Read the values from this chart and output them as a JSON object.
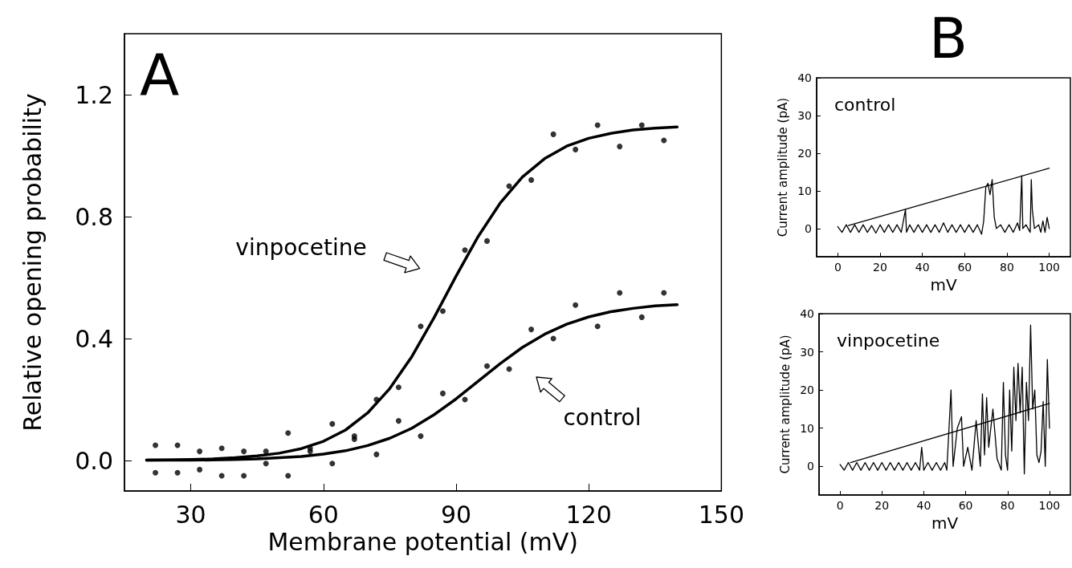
{
  "chart_data": [
    {
      "type": "scatter",
      "title": "A",
      "xlabel": "Membrane potential (mV)",
      "ylabel": "Relative opening probability",
      "xlim": [
        15,
        150
      ],
      "xticks": [
        30,
        60,
        90,
        120,
        150
      ],
      "ylim": [
        -0.1,
        1.4
      ],
      "yticks": [
        {
          "value": 0,
          "label": "0.0"
        },
        {
          "value": 0.4,
          "label": "0.4"
        },
        {
          "value": 0.8,
          "label": "0.8"
        },
        {
          "value": 1.2,
          "label": "1.2"
        }
      ],
      "marker": "circle",
      "annotations": [
        "vinpocetine",
        "control"
      ],
      "series": [
        {
          "color": "#000000",
          "x": [
            22,
            27,
            32,
            37,
            42,
            47,
            52,
            57,
            62,
            67,
            72,
            77,
            82,
            87,
            92,
            97,
            102,
            107,
            112,
            117,
            122,
            127,
            132,
            137
          ],
          "values": [
            0.05,
            -0.04,
            0.03,
            -0.05,
            0.03,
            -0.01,
            0.09,
            0.03,
            0.12,
            0.07,
            0.2,
            0.24,
            0.44,
            0.49,
            0.69,
            0.72,
            0.9,
            0.92,
            1.07,
            1.02,
            1.1,
            1.03,
            1.1,
            1.05
          ]
        },
        {
          "color": "#000000",
          "x": [
            22,
            27,
            32,
            37,
            42,
            47,
            52,
            57,
            62,
            67,
            72,
            77,
            82,
            87,
            92,
            97,
            102,
            107,
            112,
            117,
            122,
            127,
            132,
            137
          ],
          "values": [
            -0.04,
            0.05,
            -0.03,
            0.04,
            -0.05,
            0.03,
            -0.05,
            0.04,
            -0.01,
            0.08,
            0.02,
            0.13,
            0.08,
            0.22,
            0.2,
            0.31,
            0.3,
            0.43,
            0.4,
            0.51,
            0.44,
            0.55,
            0.47,
            0.55
          ]
        },
        {
          "type": "line",
          "marker": "none",
          "color": "#000000",
          "x": [
            20,
            25,
            30,
            35,
            40,
            45,
            50,
            55,
            60,
            65,
            70,
            75,
            80,
            85,
            90,
            95,
            100,
            105,
            110,
            115,
            120,
            125,
            130,
            135,
            140
          ],
          "values": [
            0.001,
            0.002,
            0.003,
            0.005,
            0.009,
            0.015,
            0.024,
            0.039,
            0.063,
            0.1,
            0.156,
            0.236,
            0.341,
            0.468,
            0.605,
            0.735,
            0.845,
            0.93,
            0.99,
            1.031,
            1.057,
            1.073,
            1.084,
            1.09,
            1.094
          ]
        },
        {
          "type": "line",
          "marker": "none",
          "color": "#000000",
          "x": [
            20,
            25,
            30,
            35,
            40,
            45,
            50,
            55,
            60,
            65,
            70,
            75,
            80,
            85,
            90,
            95,
            100,
            105,
            110,
            115,
            120,
            125,
            130,
            135,
            140
          ],
          "values": [
            0.001,
            0.001,
            0.001,
            0.002,
            0.003,
            0.005,
            0.009,
            0.013,
            0.021,
            0.032,
            0.049,
            0.073,
            0.106,
            0.15,
            0.202,
            0.26,
            0.318,
            0.371,
            0.414,
            0.447,
            0.471,
            0.488,
            0.499,
            0.507,
            0.511
          ]
        }
      ]
    },
    {
      "type": "line",
      "title": "B",
      "xlabel": "mV",
      "ylabel": "Current amplitude (pA)",
      "xlim": [
        -10,
        110
      ],
      "xticks": [
        0,
        20,
        40,
        60,
        80,
        100
      ],
      "ylim": [
        -7.5,
        40
      ],
      "yticks": [
        0,
        10,
        20,
        30,
        40
      ],
      "annotations": [
        "control"
      ],
      "series": [
        {
          "color": "#000000",
          "x": [
            0,
            2,
            4,
            6,
            8,
            10,
            12,
            14,
            16,
            18,
            20,
            22,
            24,
            26,
            28,
            30,
            32,
            32.5,
            34,
            36,
            38,
            40,
            42,
            44,
            46,
            48,
            50,
            52,
            54,
            56,
            58,
            60,
            62,
            64,
            66,
            68,
            69,
            70,
            71,
            72,
            73,
            74,
            75,
            77,
            79,
            81,
            83,
            85,
            86,
            87,
            87.5,
            89,
            91,
            91.5,
            92,
            93,
            95,
            96,
            97,
            98,
            99,
            100
          ],
          "values": [
            0.5,
            -1,
            1,
            -1,
            1,
            -1,
            1,
            -1,
            0.8,
            -1.2,
            1,
            -1,
            1,
            -1,
            1,
            -1,
            5,
            -1,
            1,
            -1,
            1,
            -1,
            1,
            -1,
            1,
            -1,
            1.5,
            -1,
            1,
            -1,
            1,
            -1,
            1,
            -1,
            1,
            -1.5,
            2,
            11,
            12,
            9,
            13,
            3,
            0,
            1,
            -1,
            1,
            -1,
            1.5,
            -0.5,
            14,
            0,
            1,
            -1,
            13,
            5,
            0,
            1,
            -1,
            2,
            -1,
            3,
            0
          ]
        },
        {
          "color": "#000000",
          "x": [
            5,
            100
          ],
          "values": [
            0.8,
            16
          ]
        }
      ]
    },
    {
      "type": "line",
      "xlabel": "mV",
      "ylabel": "Current amplitude (pA)",
      "xlim": [
        -10,
        110
      ],
      "xticks": [
        0,
        20,
        40,
        60,
        80,
        100
      ],
      "ylim": [
        -7.5,
        40
      ],
      "yticks": [
        0,
        10,
        20,
        30,
        40
      ],
      "annotations": [
        "vinpocetine"
      ],
      "series": [
        {
          "color": "#000000",
          "x": [
            0,
            2,
            4,
            6,
            8,
            10,
            12,
            14,
            16,
            18,
            20,
            22,
            24,
            26,
            28,
            30,
            32,
            34,
            36,
            38,
            39,
            40,
            42,
            44,
            46,
            48,
            50,
            51,
            53,
            54,
            56,
            58,
            59,
            61,
            63,
            65,
            67,
            68,
            69,
            70,
            71,
            73,
            75,
            77,
            78,
            79,
            80,
            81,
            82,
            83,
            84,
            85,
            86,
            87,
            88,
            89,
            90,
            91,
            92,
            93,
            94,
            95,
            96,
            97,
            98,
            99,
            100
          ],
          "values": [
            0.5,
            -1,
            1,
            -1,
            1,
            -1,
            1,
            -1,
            1,
            -1,
            1,
            -1,
            1,
            -1,
            1,
            -1,
            1,
            -1,
            1,
            -1,
            5,
            -1,
            1,
            -1,
            1,
            -1,
            1,
            -1,
            20,
            0,
            10,
            13,
            0,
            5,
            -1,
            12,
            0,
            19,
            3,
            18,
            5,
            15,
            2,
            -1,
            22,
            3,
            -1,
            20,
            4,
            26,
            12,
            27,
            14,
            26,
            -2,
            22,
            12,
            37,
            15,
            20,
            3,
            1,
            4,
            17,
            0,
            28,
            10
          ]
        },
        {
          "color": "#000000",
          "x": [
            5,
            100
          ],
          "values": [
            1,
            16.5
          ]
        }
      ]
    }
  ]
}
